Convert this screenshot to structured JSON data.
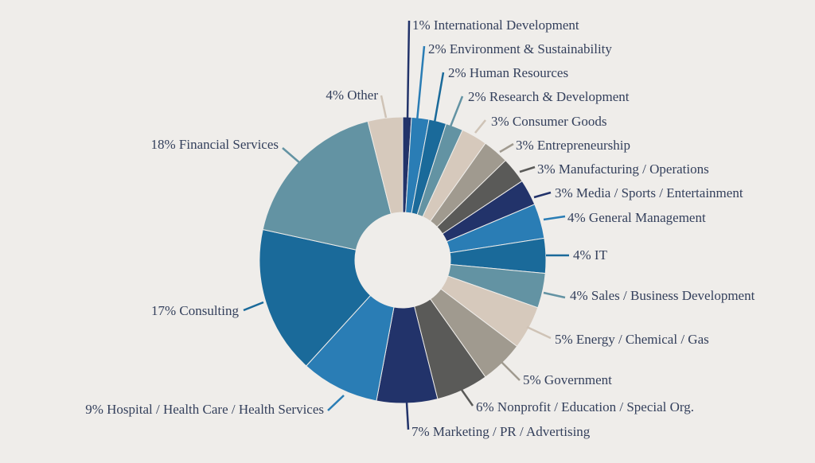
{
  "chart_data": {
    "type": "pie",
    "donut": true,
    "start": "12 o'clock, clockwise",
    "slices": [
      {
        "label": "1% International Development",
        "value": 1,
        "color": "#22336a"
      },
      {
        "label": "2% Environment & Sustainability",
        "value": 2,
        "color": "#2a7db5"
      },
      {
        "label": "2% Human Resources",
        "value": 2,
        "color": "#1a6a9a"
      },
      {
        "label": "2% Research & Development",
        "value": 2,
        "color": "#6393a3"
      },
      {
        "label": "3% Consumer Goods",
        "value": 3,
        "color": "#d6c9bc"
      },
      {
        "label": "3% Entrepreneurship",
        "value": 3,
        "color": "#a09a8f"
      },
      {
        "label": "3% Manufacturing / Operations",
        "value": 3,
        "color": "#5a5a58"
      },
      {
        "label": "3% Media / Sports / Entertainment",
        "value": 3,
        "color": "#22336a"
      },
      {
        "label": "4% General Management",
        "value": 4,
        "color": "#2a7db5"
      },
      {
        "label": "4% IT",
        "value": 4,
        "color": "#1a6a9a"
      },
      {
        "label": "4% Sales / Business Development",
        "value": 4,
        "color": "#6393a3"
      },
      {
        "label": "5% Energy / Chemical / Gas",
        "value": 5,
        "color": "#d6c9bc"
      },
      {
        "label": "5% Government",
        "value": 5,
        "color": "#a09a8f"
      },
      {
        "label": "6% Nonprofit / Education / Special Org.",
        "value": 6,
        "color": "#5a5a58"
      },
      {
        "label": "7% Marketing / PR / Advertising",
        "value": 7,
        "color": "#22336a"
      },
      {
        "label": "9% Hospital / Health Care / Health Services",
        "value": 9,
        "color": "#2a7db5"
      },
      {
        "label": "17% Consulting",
        "value": 17,
        "color": "#1a6a9a"
      },
      {
        "label": "18% Financial Services",
        "value": 18,
        "color": "#6393a3"
      },
      {
        "label": "4% Other",
        "value": 4,
        "color": "#d6c9bc"
      }
    ]
  }
}
